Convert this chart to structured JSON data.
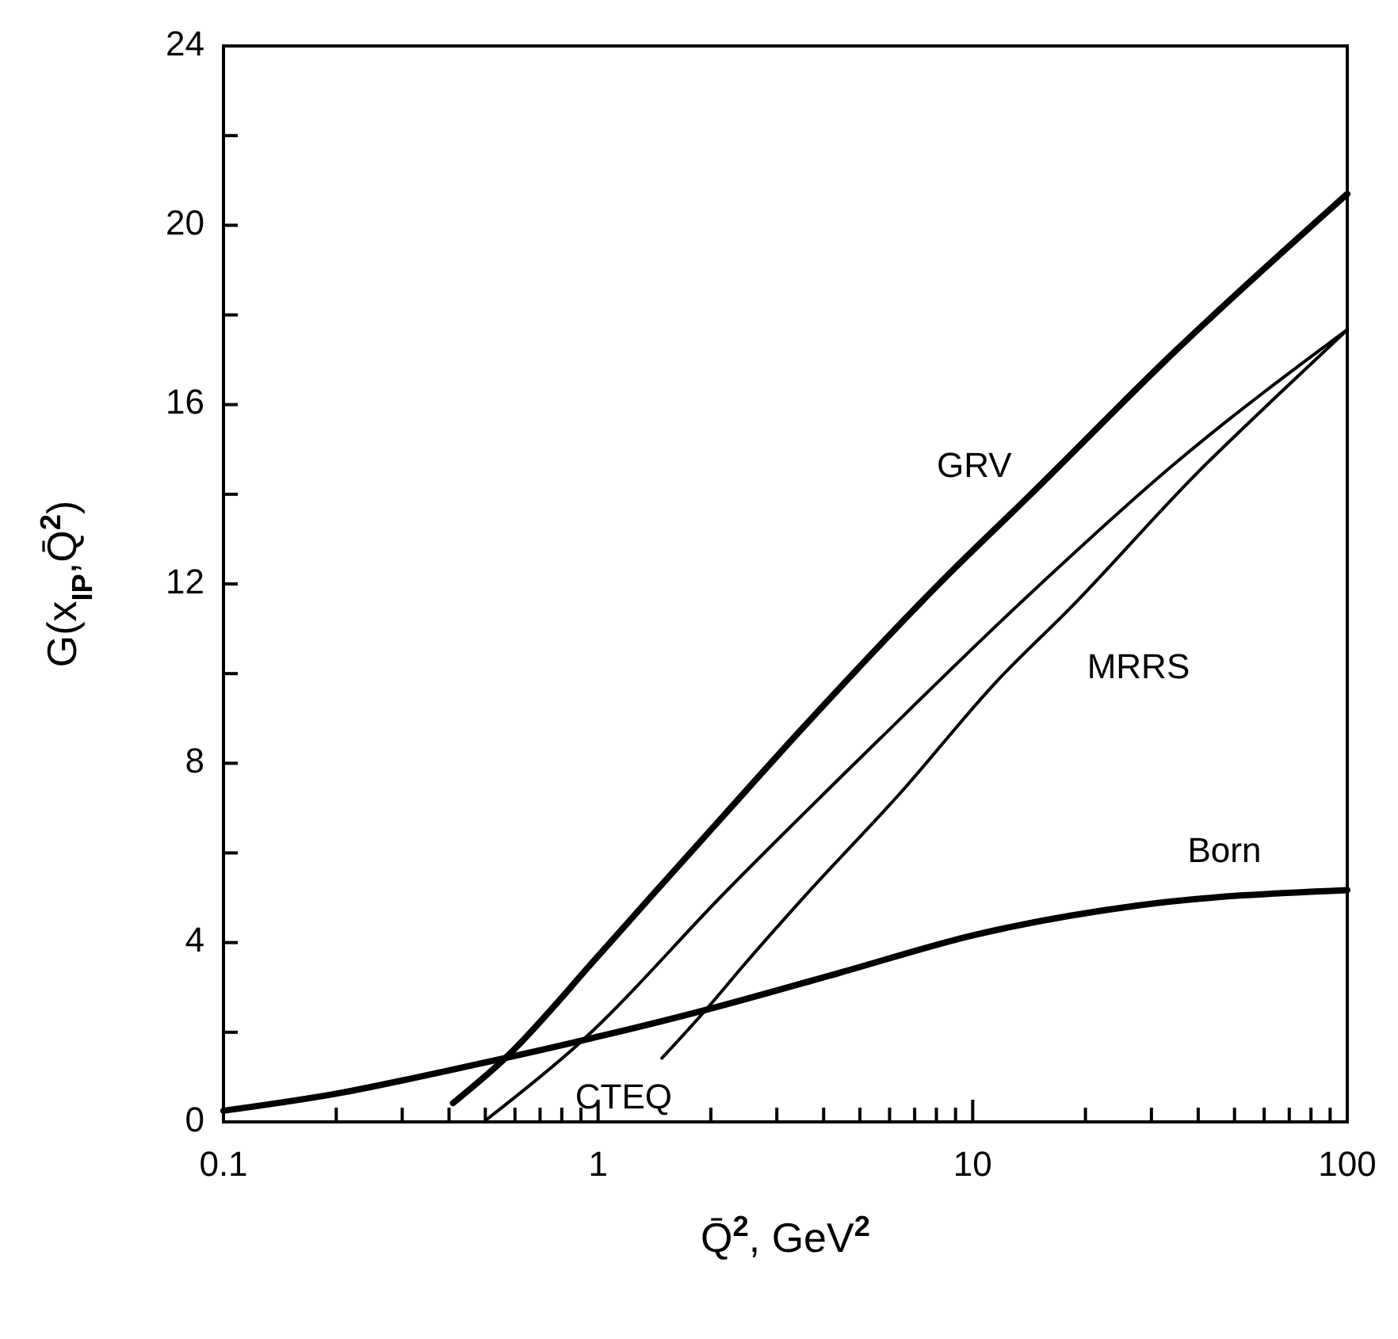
{
  "chart_data": {
    "type": "line",
    "xlabel": "Q̄$^{2}$, GeV$^{2}$",
    "ylabel": "G(x$_{IP}$,Q̄$^{2}$)",
    "log": "x",
    "xlim": [
      0.1,
      100
    ],
    "xticks": [
      {
        "value": 0.1,
        "label": "0.1"
      },
      {
        "value": 0.2,
        "label": null
      },
      {
        "value": 0.3,
        "label": null
      },
      {
        "value": 0.4,
        "label": null
      },
      {
        "value": 0.5,
        "label": null
      },
      {
        "value": 0.6,
        "label": null
      },
      {
        "value": 0.7,
        "label": null
      },
      {
        "value": 0.8,
        "label": null
      },
      {
        "value": 0.9,
        "label": null
      },
      1,
      {
        "value": 2,
        "label": null
      },
      {
        "value": 3,
        "label": null
      },
      {
        "value": 4,
        "label": null
      },
      {
        "value": 5,
        "label": null
      },
      {
        "value": 6,
        "label": null
      },
      {
        "value": 7,
        "label": null
      },
      {
        "value": 8,
        "label": null
      },
      {
        "value": 9,
        "label": null
      },
      10,
      {
        "value": 20,
        "label": null
      },
      {
        "value": 30,
        "label": null
      },
      {
        "value": 40,
        "label": null
      },
      {
        "value": 50,
        "label": null
      },
      {
        "value": 60,
        "label": null
      },
      {
        "value": 70,
        "label": null
      },
      {
        "value": 80,
        "label": null
      },
      {
        "value": 90,
        "label": null
      },
      100
    ],
    "ylim": [
      0,
      24
    ],
    "yticks": [
      0,
      {
        "value": 2,
        "label": null
      },
      4,
      {
        "value": 6,
        "label": null
      },
      8,
      {
        "value": 10,
        "label": null
      },
      12,
      {
        "value": 14,
        "label": null
      },
      16,
      {
        "value": 18,
        "label": null
      },
      20,
      {
        "value": 22,
        "label": null
      },
      24
    ],
    "marker": "none",
    "line_style": "solid",
    "series": [
      {
        "name": "GRV",
        "color": "#000000",
        "x": [
          0.41,
          0.565,
          1.0,
          1.41,
          2.2,
          3.53,
          8.83,
          13.9,
          34.8,
          100
        ],
        "values": [
          0.42,
          1.42,
          3.7,
          5.1,
          6.9,
          8.8,
          12.3,
          13.9,
          17.2,
          20.7
        ]
      },
      {
        "name": "CTEQ",
        "color": "#000000",
        "x": [
          0.5,
          0.89,
          2.23,
          5.58,
          13.9,
          34.8,
          100
        ],
        "values": [
          0.03,
          1.75,
          5.2,
          8.5,
          11.7,
          14.7,
          17.67
        ]
      },
      {
        "name": "MRRS",
        "color": "#000000",
        "x": [
          1.48,
          1.94,
          2.45,
          3.53,
          6.4,
          11.6,
          18.4,
          40,
          66,
          100
        ],
        "values": [
          1.42,
          2.5,
          3.5,
          5.0,
          7.33,
          9.83,
          11.5,
          14.5,
          16.25,
          17.67
        ]
      },
      {
        "name": "Born",
        "color": "#000000",
        "x": [
          0.1,
          0.2,
          0.41,
          0.89,
          1.94,
          4.43,
          10.1,
          27.7,
          100
        ],
        "values": [
          0.25,
          0.63,
          1.17,
          1.8,
          2.5,
          3.33,
          4.17,
          4.83,
          5.17
        ]
      }
    ]
  }
}
